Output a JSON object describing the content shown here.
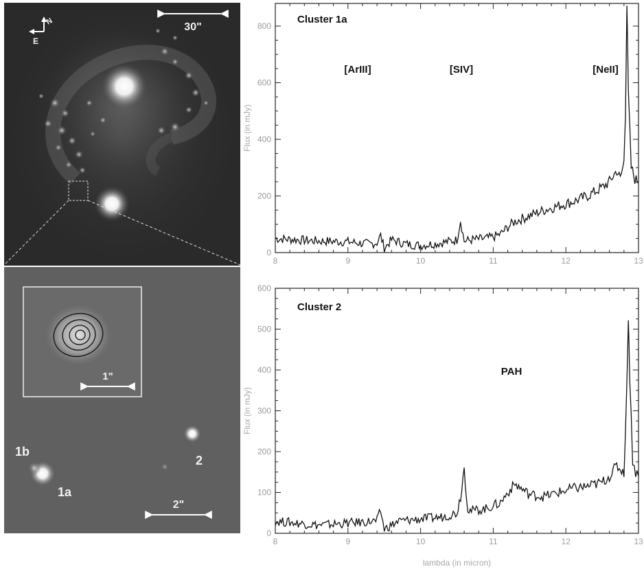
{
  "images": {
    "top": {
      "scale_label": "30\"",
      "compass_e": "E",
      "compass_n": "N"
    },
    "bottom": {
      "inset_scale_label": "1\"",
      "scale_label": "2\"",
      "source_labels": [
        "1b",
        "1a",
        "2"
      ]
    }
  },
  "chart_data": [
    {
      "type": "line",
      "title": "Cluster 1a",
      "xlabel": "",
      "ylabel": "Flux (in mJy)",
      "xlim": [
        8,
        13
      ],
      "ylim": [
        0,
        880
      ],
      "xticks": [
        8,
        9,
        10,
        11,
        12,
        13
      ],
      "yticks": [
        0,
        200,
        400,
        600,
        800
      ],
      "annotations": [
        {
          "text": "[ArIII]",
          "x": 9.0
        },
        {
          "text": "[SIV]",
          "x": 10.5
        },
        {
          "text": "[NeII]",
          "x": 12.8
        }
      ],
      "series": [
        {
          "x": [
            8.0,
            8.5,
            9.0,
            9.3,
            9.4,
            9.45,
            9.5,
            9.6,
            9.8,
            10.0,
            10.3,
            10.5,
            10.55,
            10.6,
            10.7,
            10.9,
            11.0,
            11.1,
            11.2,
            11.3,
            11.5,
            11.7,
            11.9,
            12.1,
            12.3,
            12.5,
            12.6,
            12.7,
            12.75,
            12.8,
            12.82,
            12.84,
            12.86,
            12.9,
            12.95,
            13.0
          ],
          "y": [
            50,
            42,
            38,
            30,
            35,
            60,
            15,
            45,
            30,
            25,
            35,
            45,
            115,
            40,
            45,
            50,
            55,
            65,
            90,
            110,
            130,
            150,
            165,
            180,
            200,
            230,
            250,
            290,
            260,
            320,
            500,
            880,
            560,
            300,
            260,
            250
          ]
        }
      ]
    },
    {
      "type": "line",
      "title": "Cluster 2",
      "xlabel": "lambda (in micron)",
      "ylabel": "Flux (in mJy)",
      "xlim": [
        8,
        13
      ],
      "ylim": [
        0,
        600
      ],
      "xticks": [
        8,
        9,
        10,
        11,
        12,
        13
      ],
      "yticks": [
        0,
        100,
        200,
        300,
        400,
        500,
        600
      ],
      "annotations": [
        {
          "text": "PAH",
          "x": 11.3
        }
      ],
      "series": [
        {
          "x": [
            8.0,
            8.3,
            8.6,
            9.0,
            9.4,
            9.45,
            9.5,
            9.7,
            10.0,
            10.3,
            10.5,
            10.55,
            10.6,
            10.65,
            10.7,
            10.9,
            11.1,
            11.2,
            11.3,
            11.5,
            11.7,
            11.9,
            12.1,
            12.3,
            12.5,
            12.6,
            12.7,
            12.8,
            12.84,
            12.86,
            12.88,
            12.92,
            12.96,
            13.0
          ],
          "y": [
            30,
            25,
            20,
            25,
            30,
            55,
            10,
            30,
            35,
            40,
            50,
            90,
            160,
            60,
            55,
            60,
            75,
            100,
            120,
            95,
            90,
            100,
            110,
            115,
            125,
            140,
            165,
            150,
            360,
            540,
            380,
            180,
            150,
            140
          ]
        }
      ]
    }
  ]
}
